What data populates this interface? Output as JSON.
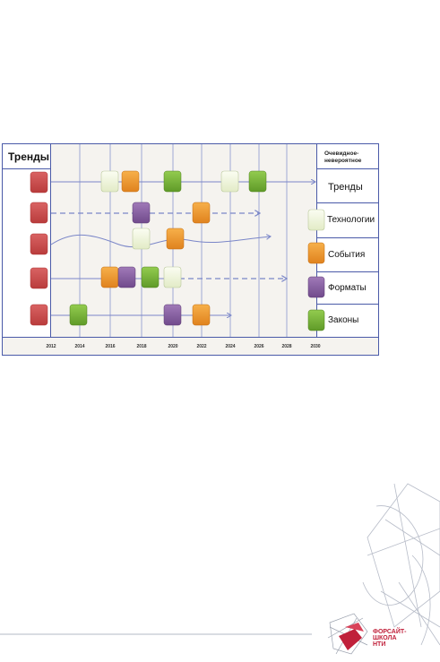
{
  "header": {
    "left_title": "Тренды",
    "right_title_line1": "Очевидное-",
    "right_title_line2": "невероятное"
  },
  "legend": [
    {
      "label": "Тренды",
      "color": ""
    },
    {
      "label": "Технологии",
      "color": "#eef4da"
    },
    {
      "label": "События",
      "color": "#f09a2e"
    },
    {
      "label": "Форматы",
      "color": "#8c5fa6"
    },
    {
      "label": "Законы",
      "color": "#7cb83a"
    }
  ],
  "years": [
    "2012",
    "2014",
    "2016",
    "2018",
    "2020",
    "2022",
    "2024",
    "2026",
    "2028",
    "2030"
  ],
  "colors": {
    "trend": "#cc4a4a",
    "technology": "#eef4da",
    "event": "#f09a2e",
    "format": "#8c5fa6",
    "law": "#7cb83a",
    "grid_bg": "#f5f3ef",
    "arrow": "#7a86c8"
  },
  "brand": {
    "line1": "ФОРСАЙТ-",
    "line2": "ШКОЛА",
    "line3": "НТИ"
  }
}
